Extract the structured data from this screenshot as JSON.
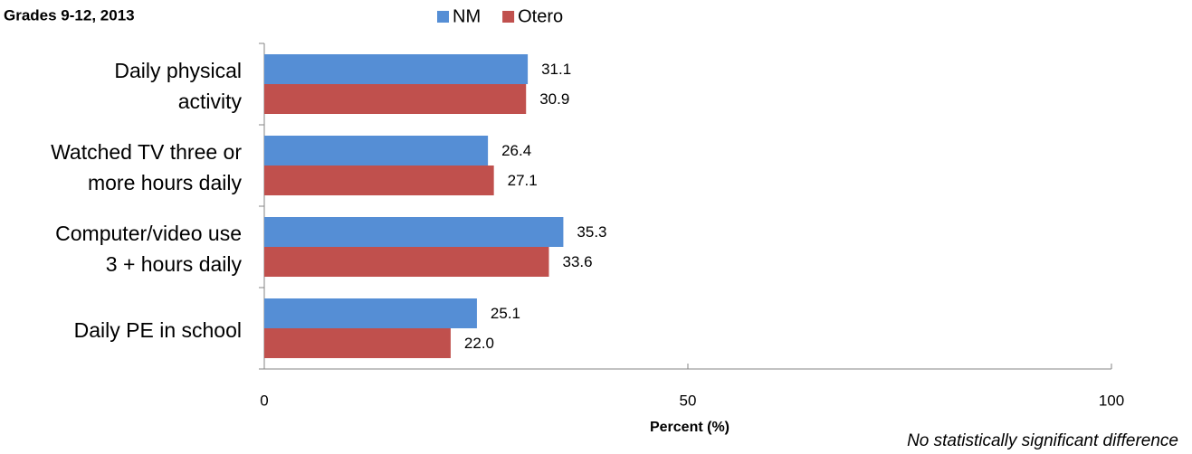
{
  "chart_data": {
    "type": "bar",
    "orientation": "horizontal",
    "title": "Grades 9-12, 2013",
    "categories": [
      "Daily physical\nactivity",
      "Watched TV three or\nmore hours daily",
      "Computer/video use\n3 + hours daily",
      "Daily PE in school"
    ],
    "series": [
      {
        "name": "NM",
        "color": "#558ed5",
        "values": [
          31.1,
          26.4,
          35.3,
          25.1
        ],
        "value_labels": [
          "31.1",
          "26.4",
          "35.3",
          "25.1"
        ]
      },
      {
        "name": "Otero",
        "color": "#c0504d",
        "values": [
          30.9,
          27.1,
          33.6,
          22.0
        ],
        "value_labels": [
          "30.9",
          "27.1",
          "33.6",
          "22.0"
        ]
      }
    ],
    "xlim": [
      0,
      100
    ],
    "xticks": [
      0,
      50,
      100
    ],
    "xlabel": "Percent (%)",
    "annotation": "No statistically significant difference",
    "legend": "top"
  }
}
